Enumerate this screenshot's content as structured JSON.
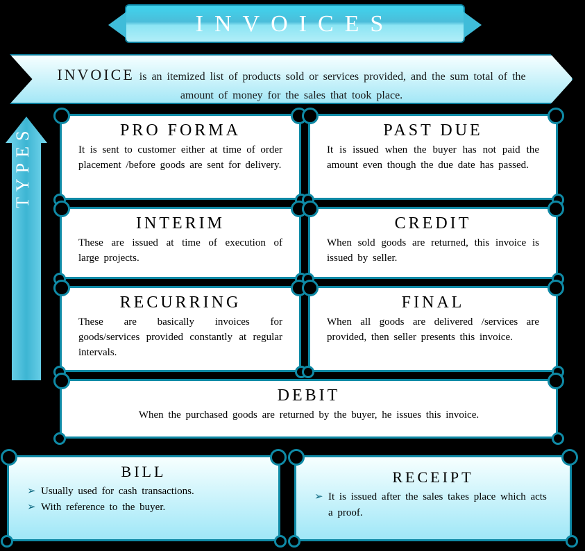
{
  "colors": {
    "background": "#000000",
    "border": "#0f8aa6",
    "banner_gradient_top": "#3fd5ef",
    "banner_gradient_bottom": "#b1eef8",
    "def_gradient_top": "#f6ffff",
    "def_gradient_bottom": "#a4e7f6",
    "bottom_gradient_top": "#f7ffff",
    "bottom_gradient_bottom": "#9fe7f7",
    "text": "#1a1a1a",
    "title_text": "#ffffff"
  },
  "typography": {
    "title_fontsize": 34,
    "title_letterspacing": 16,
    "heading_fontsize": 24,
    "heading_letterspacing": 4,
    "body_fontsize": 15,
    "types_label_fontsize": 26
  },
  "title": "INVOICES",
  "definition_lead": "INVOICE",
  "definition_body": " is an itemized list of products sold or services provided, and the sum total of the amount of money for the sales that took place.",
  "types_label": "TYPES",
  "cards": [
    {
      "title": "PRO FORMA",
      "text": "It is sent to customer either at time of order placement /before goods are sent for delivery."
    },
    {
      "title": "PAST DUE",
      "text": "It is issued when the buyer has not paid the amount even though the due date has passed."
    },
    {
      "title": "INTERIM",
      "text": "These are issued at time of execution of large projects."
    },
    {
      "title": "CREDIT",
      "text": "When sold goods are returned, this invoice is issued by seller."
    },
    {
      "title": "RECURRING",
      "text": "These are basically invoices for goods/services provided constantly at regular intervals."
    },
    {
      "title": "FINAL",
      "text": "When all goods are delivered /services are provided, then seller presents this invoice."
    },
    {
      "title": "DEBIT",
      "text": "When the purchased goods are returned by the buyer, he issues this invoice."
    }
  ],
  "bottom": [
    {
      "title": "BILL",
      "bullets": [
        "Usually used for cash transactions.",
        "With reference to the buyer."
      ]
    },
    {
      "title": "RECEIPT",
      "bullets": [
        "It is issued after the sales takes place which acts a proof."
      ]
    }
  ]
}
